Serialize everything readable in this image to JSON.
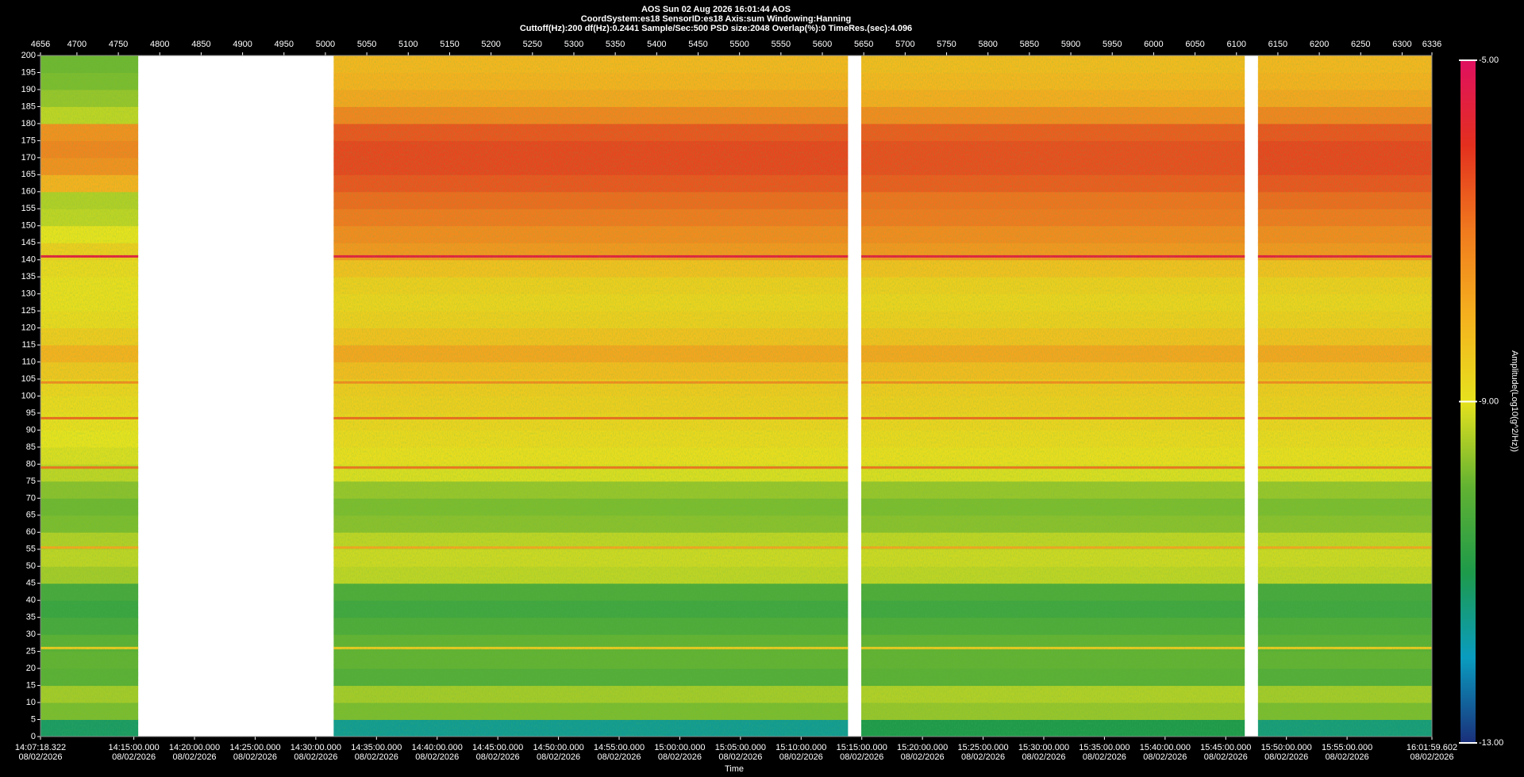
{
  "chart_data": {
    "type": "spectrogram",
    "title": "AOS  Sun 02 Aug 2026 16:01:44  AOS",
    "subtitle": "CoordSystem:es18   SensorID:es18   Axis:sum   Windowing:Hanning",
    "parameters": "Cuttoff(Hz):200   df(Hz):0.2441   Sample/Sec:500   PSD size:2048   Overlap(%):0   TimeRes.(sec):4.096",
    "xlabel": "Time",
    "colorbar_label": "Amplitude(Log10(g^2/Hz))",
    "xlim": [
      4656,
      6336
    ],
    "xticks": [
      4656,
      4700,
      4750,
      4800,
      4850,
      4900,
      4950,
      5000,
      5050,
      5100,
      5150,
      5200,
      5250,
      5300,
      5350,
      5400,
      5450,
      5500,
      5550,
      5600,
      5650,
      5700,
      5750,
      5800,
      5850,
      5900,
      5950,
      6000,
      6050,
      6100,
      6150,
      6200,
      6250,
      6300,
      6336
    ],
    "tlim": [
      50838.322,
      57719.602
    ],
    "tticks": [
      {
        "value": 50838.322,
        "label": "14:07:18.322",
        "date": "08/02/2026"
      },
      {
        "value": 51300,
        "label": "14:15:00.000",
        "date": "08/02/2026"
      },
      {
        "value": 51600,
        "label": "14:20:00.000",
        "date": "08/02/2026"
      },
      {
        "value": 51900,
        "label": "14:25:00.000",
        "date": "08/02/2026"
      },
      {
        "value": 52200,
        "label": "14:30:00.000",
        "date": "08/02/2026"
      },
      {
        "value": 52500,
        "label": "14:35:00.000",
        "date": "08/02/2026"
      },
      {
        "value": 52800,
        "label": "14:40:00.000",
        "date": "08/02/2026"
      },
      {
        "value": 53100,
        "label": "14:45:00.000",
        "date": "08/02/2026"
      },
      {
        "value": 53400,
        "label": "14:50:00.000",
        "date": "08/02/2026"
      },
      {
        "value": 53700,
        "label": "14:55:00.000",
        "date": "08/02/2026"
      },
      {
        "value": 54000,
        "label": "15:00:00.000",
        "date": "08/02/2026"
      },
      {
        "value": 54300,
        "label": "15:05:00.000",
        "date": "08/02/2026"
      },
      {
        "value": 54600,
        "label": "15:10:00.000",
        "date": "08/02/2026"
      },
      {
        "value": 54900,
        "label": "15:15:00.000",
        "date": "08/02/2026"
      },
      {
        "value": 55200,
        "label": "15:20:00.000",
        "date": "08/02/2026"
      },
      {
        "value": 55500,
        "label": "15:25:00.000",
        "date": "08/02/2026"
      },
      {
        "value": 55800,
        "label": "15:30:00.000",
        "date": "08/02/2026"
      },
      {
        "value": 56100,
        "label": "15:35:00.000",
        "date": "08/02/2026"
      },
      {
        "value": 56400,
        "label": "15:40:00.000",
        "date": "08/02/2026"
      },
      {
        "value": 56700,
        "label": "15:45:00.000",
        "date": "08/02/2026"
      },
      {
        "value": 57000,
        "label": "15:50:00.000",
        "date": "08/02/2026"
      },
      {
        "value": 57300,
        "label": "15:55:00.000",
        "date": "08/02/2026"
      },
      {
        "value": 57719.602,
        "label": "16:01:59.602",
        "date": "08/02/2026"
      }
    ],
    "ylim": [
      0,
      200
    ],
    "yticks": [
      0,
      5,
      10,
      15,
      20,
      25,
      30,
      35,
      40,
      45,
      50,
      55,
      60,
      65,
      70,
      75,
      80,
      85,
      90,
      95,
      100,
      105,
      110,
      115,
      120,
      125,
      130,
      135,
      140,
      145,
      150,
      155,
      160,
      165,
      170,
      175,
      180,
      185,
      190,
      195,
      200
    ],
    "clim": [
      -13,
      -5
    ],
    "cticks": [
      {
        "value": -5,
        "label": "-5.00"
      },
      {
        "value": -9,
        "label": "-9.00"
      },
      {
        "value": -13,
        "label": "-13.00"
      }
    ],
    "colormap": [
      "#1a2f7a",
      "#0a9cc0",
      "#1e9a4a",
      "#62b232",
      "#e6e21e",
      "#f5b11e",
      "#f07a1e",
      "#e3301e",
      "#e01060"
    ],
    "segments": [
      [
        4656,
        4774
      ],
      [
        5010,
        5631
      ],
      [
        5647,
        6110
      ],
      [
        6126,
        6336
      ]
    ],
    "ybins": [
      0,
      5,
      10,
      15,
      20,
      25,
      30,
      35,
      40,
      45,
      50,
      55,
      60,
      65,
      70,
      75,
      80,
      85,
      90,
      95,
      100,
      105,
      110,
      115,
      120,
      125,
      130,
      135,
      140,
      145,
      150,
      155,
      160,
      165,
      170,
      175,
      180,
      185,
      190,
      195,
      200
    ],
    "z": [
      [
        -11.2,
        -11.6,
        -11.0,
        -11.4
      ],
      [
        -9.8,
        -9.8,
        -9.6,
        -9.8
      ],
      [
        -9.5,
        -9.5,
        -9.4,
        -9.5
      ],
      [
        -10.1,
        -10.2,
        -10.1,
        -10.2
      ],
      [
        -10.0,
        -10.0,
        -10.0,
        -10.0
      ],
      [
        -10.1,
        -10.0,
        -10.0,
        -10.1
      ],
      [
        -10.4,
        -10.3,
        -10.3,
        -10.3
      ],
      [
        -10.6,
        -10.5,
        -10.5,
        -10.5
      ],
      [
        -10.4,
        -10.3,
        -10.3,
        -10.4
      ],
      [
        -9.5,
        -9.3,
        -9.3,
        -9.3
      ],
      [
        -9.3,
        -9.2,
        -9.2,
        -9.2
      ],
      [
        -9.4,
        -9.3,
        -9.3,
        -9.3
      ],
      [
        -9.8,
        -9.7,
        -9.7,
        -9.7
      ],
      [
        -9.9,
        -9.8,
        -9.8,
        -9.8
      ],
      [
        -9.7,
        -9.6,
        -9.6,
        -9.6
      ],
      [
        -9.3,
        -9.1,
        -9.1,
        -9.1
      ],
      [
        -9.1,
        -8.9,
        -8.9,
        -8.9
      ],
      [
        -9.0,
        -8.8,
        -8.8,
        -8.8
      ],
      [
        -8.9,
        -8.7,
        -8.7,
        -8.7
      ],
      [
        -8.8,
        -8.6,
        -8.6,
        -8.6
      ],
      [
        -8.7,
        -8.5,
        -8.5,
        -8.5
      ],
      [
        -8.4,
        -8.2,
        -8.2,
        -8.2
      ],
      [
        -8.0,
        -7.8,
        -7.8,
        -7.8
      ],
      [
        -8.5,
        -8.3,
        -8.3,
        -8.3
      ],
      [
        -8.8,
        -8.6,
        -8.6,
        -8.6
      ],
      [
        -8.9,
        -8.7,
        -8.7,
        -8.7
      ],
      [
        -8.9,
        -8.6,
        -8.6,
        -8.6
      ],
      [
        -8.8,
        -8.3,
        -8.3,
        -8.3
      ],
      [
        -8.6,
        -7.5,
        -7.5,
        -7.5
      ],
      [
        -9.0,
        -7.3,
        -7.3,
        -7.3
      ],
      [
        -9.3,
        -7.0,
        -7.0,
        -7.0
      ],
      [
        -9.4,
        -6.8,
        -6.9,
        -6.8
      ],
      [
        -8.0,
        -6.5,
        -6.6,
        -6.5
      ],
      [
        -7.4,
        -6.3,
        -6.4,
        -6.3
      ],
      [
        -7.2,
        -6.3,
        -6.4,
        -6.3
      ],
      [
        -7.4,
        -6.5,
        -6.6,
        -6.5
      ],
      [
        -9.3,
        -7.2,
        -7.3,
        -7.2
      ],
      [
        -9.6,
        -7.8,
        -7.9,
        -7.8
      ],
      [
        -9.8,
        -8.0,
        -8.1,
        -8.0
      ],
      [
        -9.9,
        -8.1,
        -8.2,
        -8.1
      ]
    ],
    "lines": [
      {
        "y": 141,
        "value": -5.5
      },
      {
        "y": 104,
        "value": -7.3
      },
      {
        "y": 93.5,
        "value": -6.8
      },
      {
        "y": 79,
        "value": -6.9
      },
      {
        "y": 55.5,
        "value": -7.8
      },
      {
        "y": 26,
        "value": -8.5
      }
    ]
  }
}
